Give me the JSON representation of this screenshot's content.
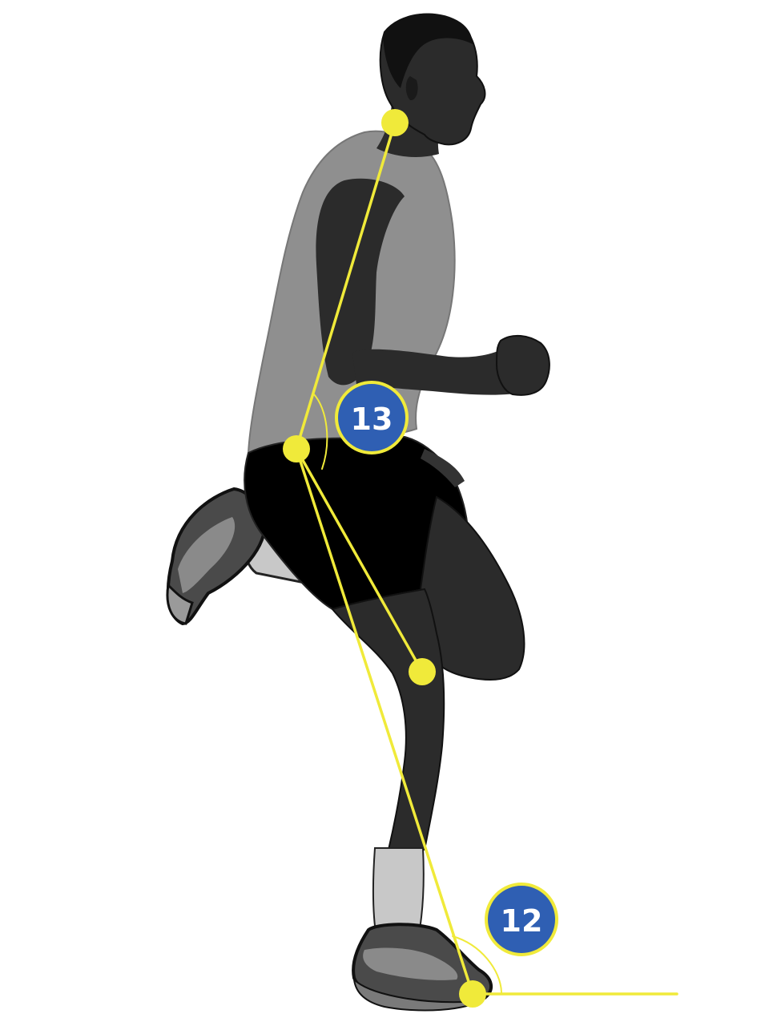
{
  "colors": {
    "skin": "#2b2b2b",
    "shirt": "#8f8f8f",
    "shorts": "#000000",
    "tights": "#2b2b2b",
    "sock": "#c8c8c8",
    "shoe": "#4a4a4a",
    "shoe_light": "#8a8a8a",
    "overlay": "#f0ea3a",
    "badge_fill": "#2f5fb3",
    "badge_ring": "#f0ea3a"
  },
  "badges": {
    "trunk_angle": "13",
    "foot_strike_angle": "12"
  },
  "joints": {
    "neck": "neck-joint",
    "hip": "hip-joint",
    "knee": "knee-joint",
    "ankle": "ankle-joint"
  }
}
